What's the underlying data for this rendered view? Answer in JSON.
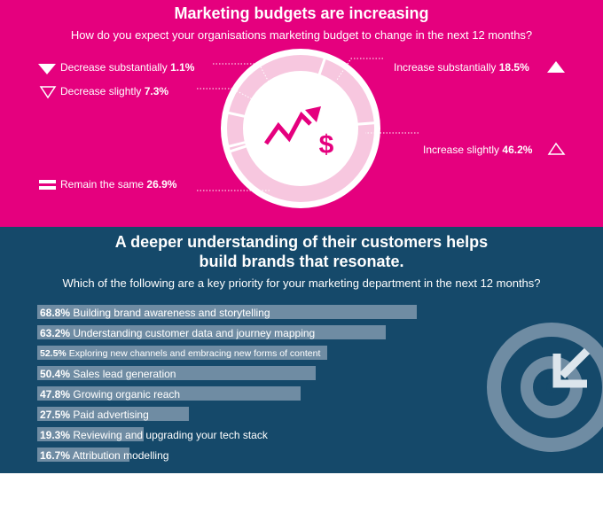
{
  "budget": {
    "title": "Marketing budgets are increasing",
    "subtitle": "How do you expect your organisations marketing budget to  change in the next 12 months?",
    "labels": {
      "decrease_substantially": {
        "text": "Decrease substantially",
        "value": "1.1%"
      },
      "decrease_slightly": {
        "text": "Decrease slightly",
        "value": "7.3%"
      },
      "remain_same": {
        "text": "Remain the same",
        "value": "26.9%"
      },
      "increase_substantially": {
        "text": "Increase substantially",
        "value": "18.5%"
      },
      "increase_slightly": {
        "text": "Increase slightly",
        "value": "46.2%"
      }
    }
  },
  "priorities": {
    "title_line1": "A deeper understanding of their customers helps",
    "title_line2": "build brands that resonate.",
    "subtitle": "Which of the following are a key priority for your marketing department in the next 12 months?"
  },
  "chart_data": [
    {
      "type": "pie",
      "categories": [
        "Decrease substantially",
        "Decrease slightly",
        "Remain the same",
        "Increase substantially",
        "Increase slightly"
      ],
      "values": [
        1.1,
        7.3,
        26.9,
        18.5,
        46.2
      ],
      "title": "Marketing budgets are increasing"
    },
    {
      "type": "bar",
      "categories": [
        "Building brand awareness and storytelling",
        "Understanding customer data and journey mapping",
        "Exploring new channels and embracing new forms of content",
        "Sales lead generation",
        "Growing organic reach",
        "Paid advertising",
        "Reviewing and upgrading your tech stack",
        "Attribution modelling"
      ],
      "values": [
        68.8,
        63.2,
        52.5,
        50.4,
        47.8,
        27.5,
        19.3,
        16.7
      ],
      "value_labels": [
        "68.8%",
        "63.2%",
        "52.5%",
        "50.4%",
        "47.8%",
        "27.5%",
        "19.3%",
        "16.7%"
      ]
    }
  ],
  "colors": {
    "pink": "#e5007e",
    "navy": "#15496a",
    "bar": "#6f8ca3",
    "ring_light": "#f7c7df"
  },
  "icons": [
    "triangle-down-filled-icon",
    "triangle-down-outline-icon",
    "equals-icon",
    "triangle-up-filled-icon",
    "triangle-up-outline-icon",
    "growth-dollar-icon",
    "target-arrow-icon"
  ]
}
